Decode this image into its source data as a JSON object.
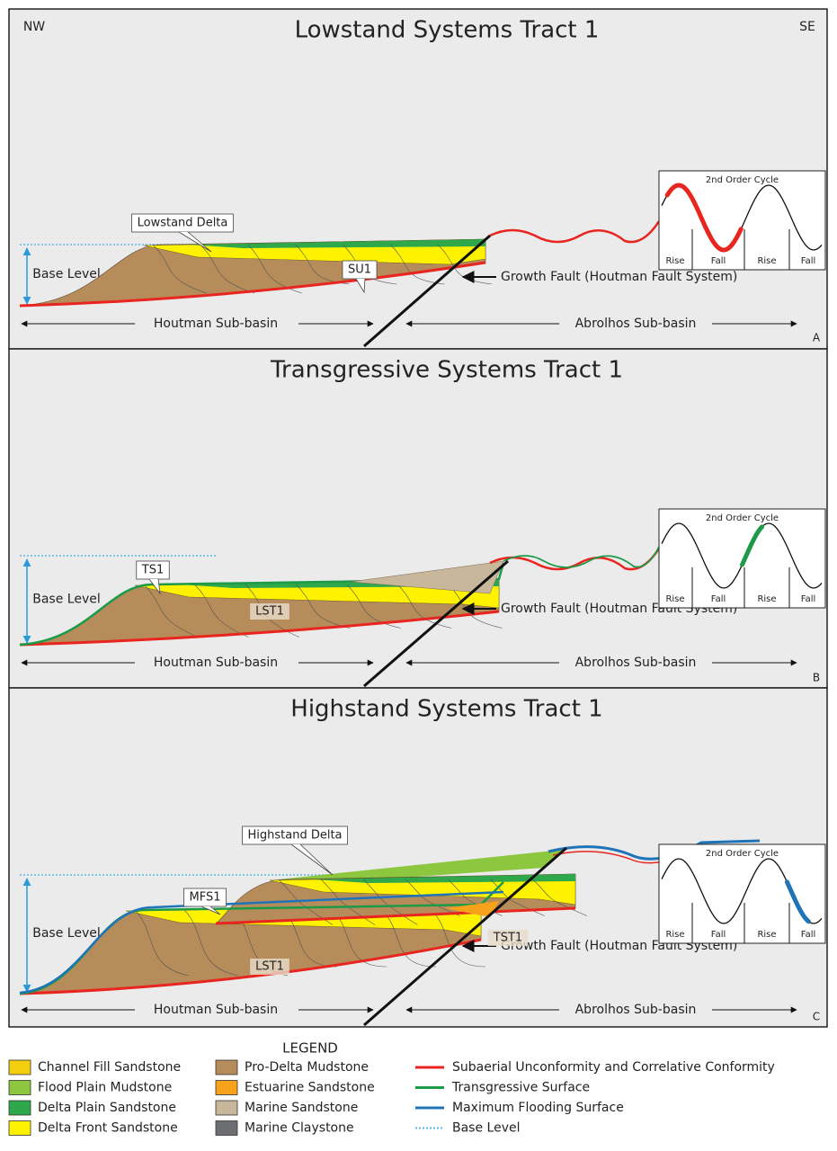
{
  "orientation": {
    "left": "NW",
    "right": "SE"
  },
  "panels": [
    {
      "title": "Lowstand Systems Tract 1",
      "corner": "A",
      "base_level": "Base Level",
      "callouts": [
        "Lowstand Delta",
        "SU1"
      ],
      "fault": "Growth Fault (Houtman Fault System)",
      "left_basin": "Houtman Sub-basin",
      "right_basin": "Abrolhos Sub-basin",
      "inset": {
        "title": "2nd Order Cycle",
        "phases": [
          "Rise",
          "Fall",
          "Rise",
          "Fall"
        ]
      }
    },
    {
      "title": "Transgressive Systems Tract 1",
      "corner": "B",
      "base_level": "Base Level",
      "callouts": [
        "TS1",
        "LST1"
      ],
      "fault": "Growth Fault (Houtman Fault System)",
      "left_basin": "Houtman Sub-basin",
      "right_basin": "Abrolhos Sub-basin",
      "inset": {
        "title": "2nd Order Cycle",
        "phases": [
          "Rise",
          "Fall",
          "Rise",
          "Fall"
        ]
      }
    },
    {
      "title": "Highstand Systems Tract 1",
      "corner": "C",
      "base_level": "Base Level",
      "callouts": [
        "Highstand Delta",
        "MFS1",
        "TST1",
        "LST1"
      ],
      "fault": "Growth Fault (Houtman Fault System)",
      "left_basin": "Houtman Sub-basin",
      "right_basin": "Abrolhos Sub-basin",
      "inset": {
        "title": "2nd Order Cycle",
        "phases": [
          "Rise",
          "Fall",
          "Rise",
          "Fall"
        ]
      }
    }
  ],
  "legend": {
    "title": "LEGEND",
    "units": [
      {
        "name": "Channel Fill Sandstone",
        "color": "#f3cf10"
      },
      {
        "name": "Flood Plain Mudstone",
        "color": "#8dc63f"
      },
      {
        "name": "Delta Plain Sandstone",
        "color": "#2ea84a"
      },
      {
        "name": "Delta Front Sandstone",
        "color": "#fff200"
      },
      {
        "name": "Pro-Delta Mudstone",
        "color": "#b58c5a"
      },
      {
        "name": "Estuarine Sandstone",
        "color": "#f7a21b"
      },
      {
        "name": "Marine Sandstone",
        "color": "#c8b79a"
      },
      {
        "name": "Marine Claystone",
        "color": "#6d6e71"
      }
    ],
    "surfaces": [
      {
        "name": "Subaerial Unconformity and Correlative Conformity",
        "color": "#e8251f"
      },
      {
        "name": "Transgressive Surface",
        "color": "#1d9a48"
      },
      {
        "name": "Maximum Flooding Surface",
        "color": "#1f74b8"
      },
      {
        "name": "Base Level",
        "color": "#5bb4e5"
      }
    ]
  }
}
